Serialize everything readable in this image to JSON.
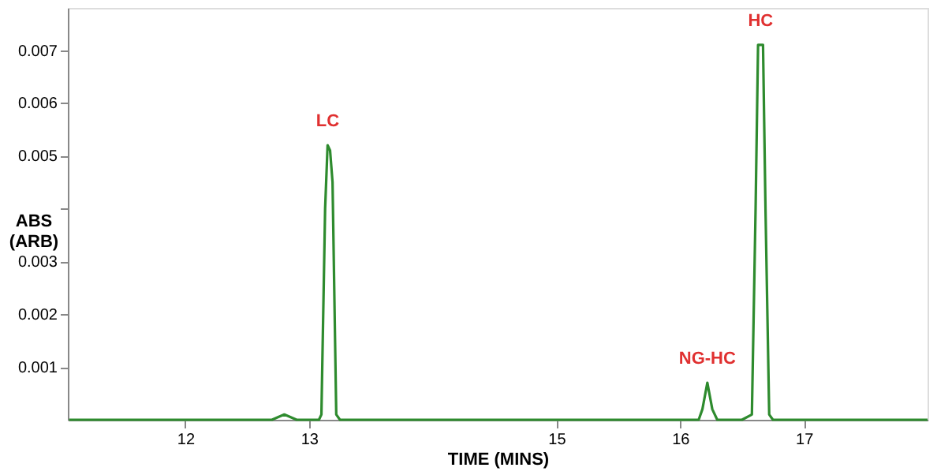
{
  "chart_data": {
    "type": "line",
    "xlabel": "TIME (MINS)",
    "ylabel": "ABS (ARB)",
    "xlim": [
      11.05,
      18.0
    ],
    "xticks": [
      12,
      13,
      15,
      16,
      17
    ],
    "ylim": [
      0,
      0.0078
    ],
    "yticks": [
      0.001,
      0.002,
      0.003,
      {
        "value": 0.004,
        "label": null
      },
      0.005,
      0.006,
      0.007
    ],
    "grid": false,
    "marker": "none",
    "line_style": "solid",
    "series": [
      {
        "color": "#2e8b2e",
        "x": [
          11.06,
          12.0,
          12.7,
          12.8,
          12.9,
          13.08,
          13.1,
          13.13,
          13.15,
          13.17,
          13.19,
          13.22,
          13.25,
          13.5,
          14.5,
          15.5,
          16.0,
          16.15,
          16.18,
          16.22,
          16.26,
          16.3,
          16.5,
          16.58,
          16.61,
          16.63,
          16.67,
          16.69,
          16.72,
          16.75,
          17.0,
          17.5,
          18.0
        ],
        "values": [
          0,
          0,
          0,
          0.0001,
          0,
          0,
          0.0001,
          0.004,
          0.0052,
          0.0051,
          0.0045,
          0.0001,
          0,
          0,
          0,
          0,
          0,
          0,
          0.0002,
          0.0007,
          0.0002,
          0,
          0,
          0.0001,
          0.004,
          0.0071,
          0.0071,
          0.004,
          0.0001,
          0,
          0,
          0,
          0
        ]
      }
    ],
    "annotations": [
      {
        "text": "LC",
        "x": 13.15,
        "y": 0.0052
      },
      {
        "text": "NG-HC",
        "x": 16.22,
        "y": 0.0007
      },
      {
        "text": "HC",
        "x": 16.65,
        "y": 0.0071
      }
    ]
  }
}
